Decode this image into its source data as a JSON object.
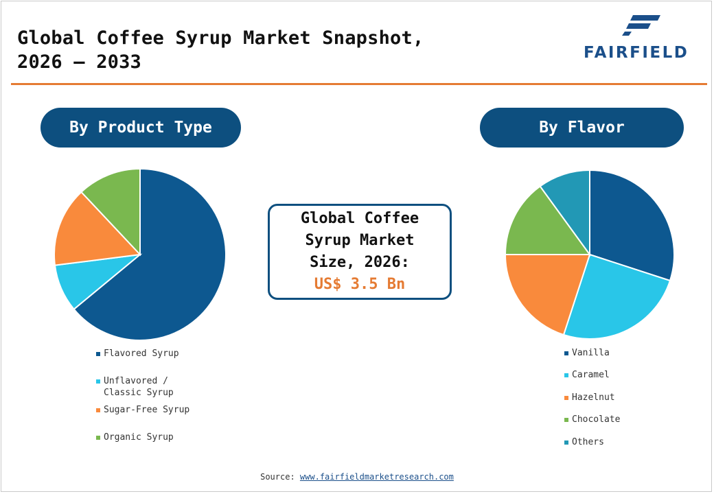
{
  "header": {
    "title_line1": "Global Coffee Syrup Market Snapshot,",
    "title_line2": "2026 – 2033",
    "logo_text": "FAIRFIELD"
  },
  "sections": {
    "left_title": "By Product Type",
    "right_title": "By Flavor"
  },
  "center_box": {
    "line1": "Global Coffee",
    "line2": "Syrup Market",
    "line3": "Size, 2026:",
    "value": "US$ 3.5 Bn"
  },
  "chart_data": [
    {
      "type": "pie",
      "title": "By Product Type",
      "categories": [
        "Flavored Syrup",
        "Unflavored /\nClassic Syrup",
        "Sugar-Free Syrup",
        "Organic Syrup"
      ],
      "values": [
        64,
        9,
        15,
        12
      ],
      "colors": [
        "#0d5890",
        "#29c6e8",
        "#f98a3c",
        "#7ab84f"
      ],
      "legend_position": "bottom"
    },
    {
      "type": "pie",
      "title": "By Flavor",
      "categories": [
        "Vanilla",
        "Caramel",
        "Hazelnut",
        "Chocolate",
        "Others"
      ],
      "values": [
        30,
        25,
        20,
        15,
        10
      ],
      "colors": [
        "#0d5890",
        "#29c6e8",
        "#f98a3c",
        "#7ab84f",
        "#2298b5"
      ],
      "legend_position": "bottom"
    }
  ],
  "footer": {
    "source_label": "Source:",
    "source_link": "www.fairfieldmarketresearch.com"
  }
}
